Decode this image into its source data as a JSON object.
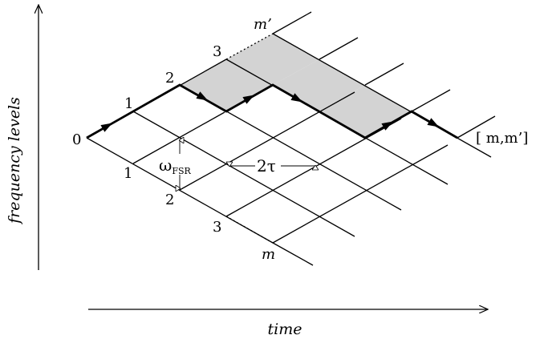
{
  "axes": {
    "vertical_label": "frequency levels",
    "horizontal_label": "time"
  },
  "upper_level_labels": [
    "0",
    "1",
    "2",
    "3"
  ],
  "lower_level_labels": [
    "1",
    "2",
    "3"
  ],
  "end_labels": {
    "upper": "m’",
    "lower": "m",
    "pair": "[ m,m’]"
  },
  "annotations": {
    "omega": "ω",
    "omega_sub": "FSR",
    "tau": "2τ"
  },
  "colors": {
    "grid": "#000000",
    "shaded": "#d3d3d3",
    "path": "#000000"
  }
}
